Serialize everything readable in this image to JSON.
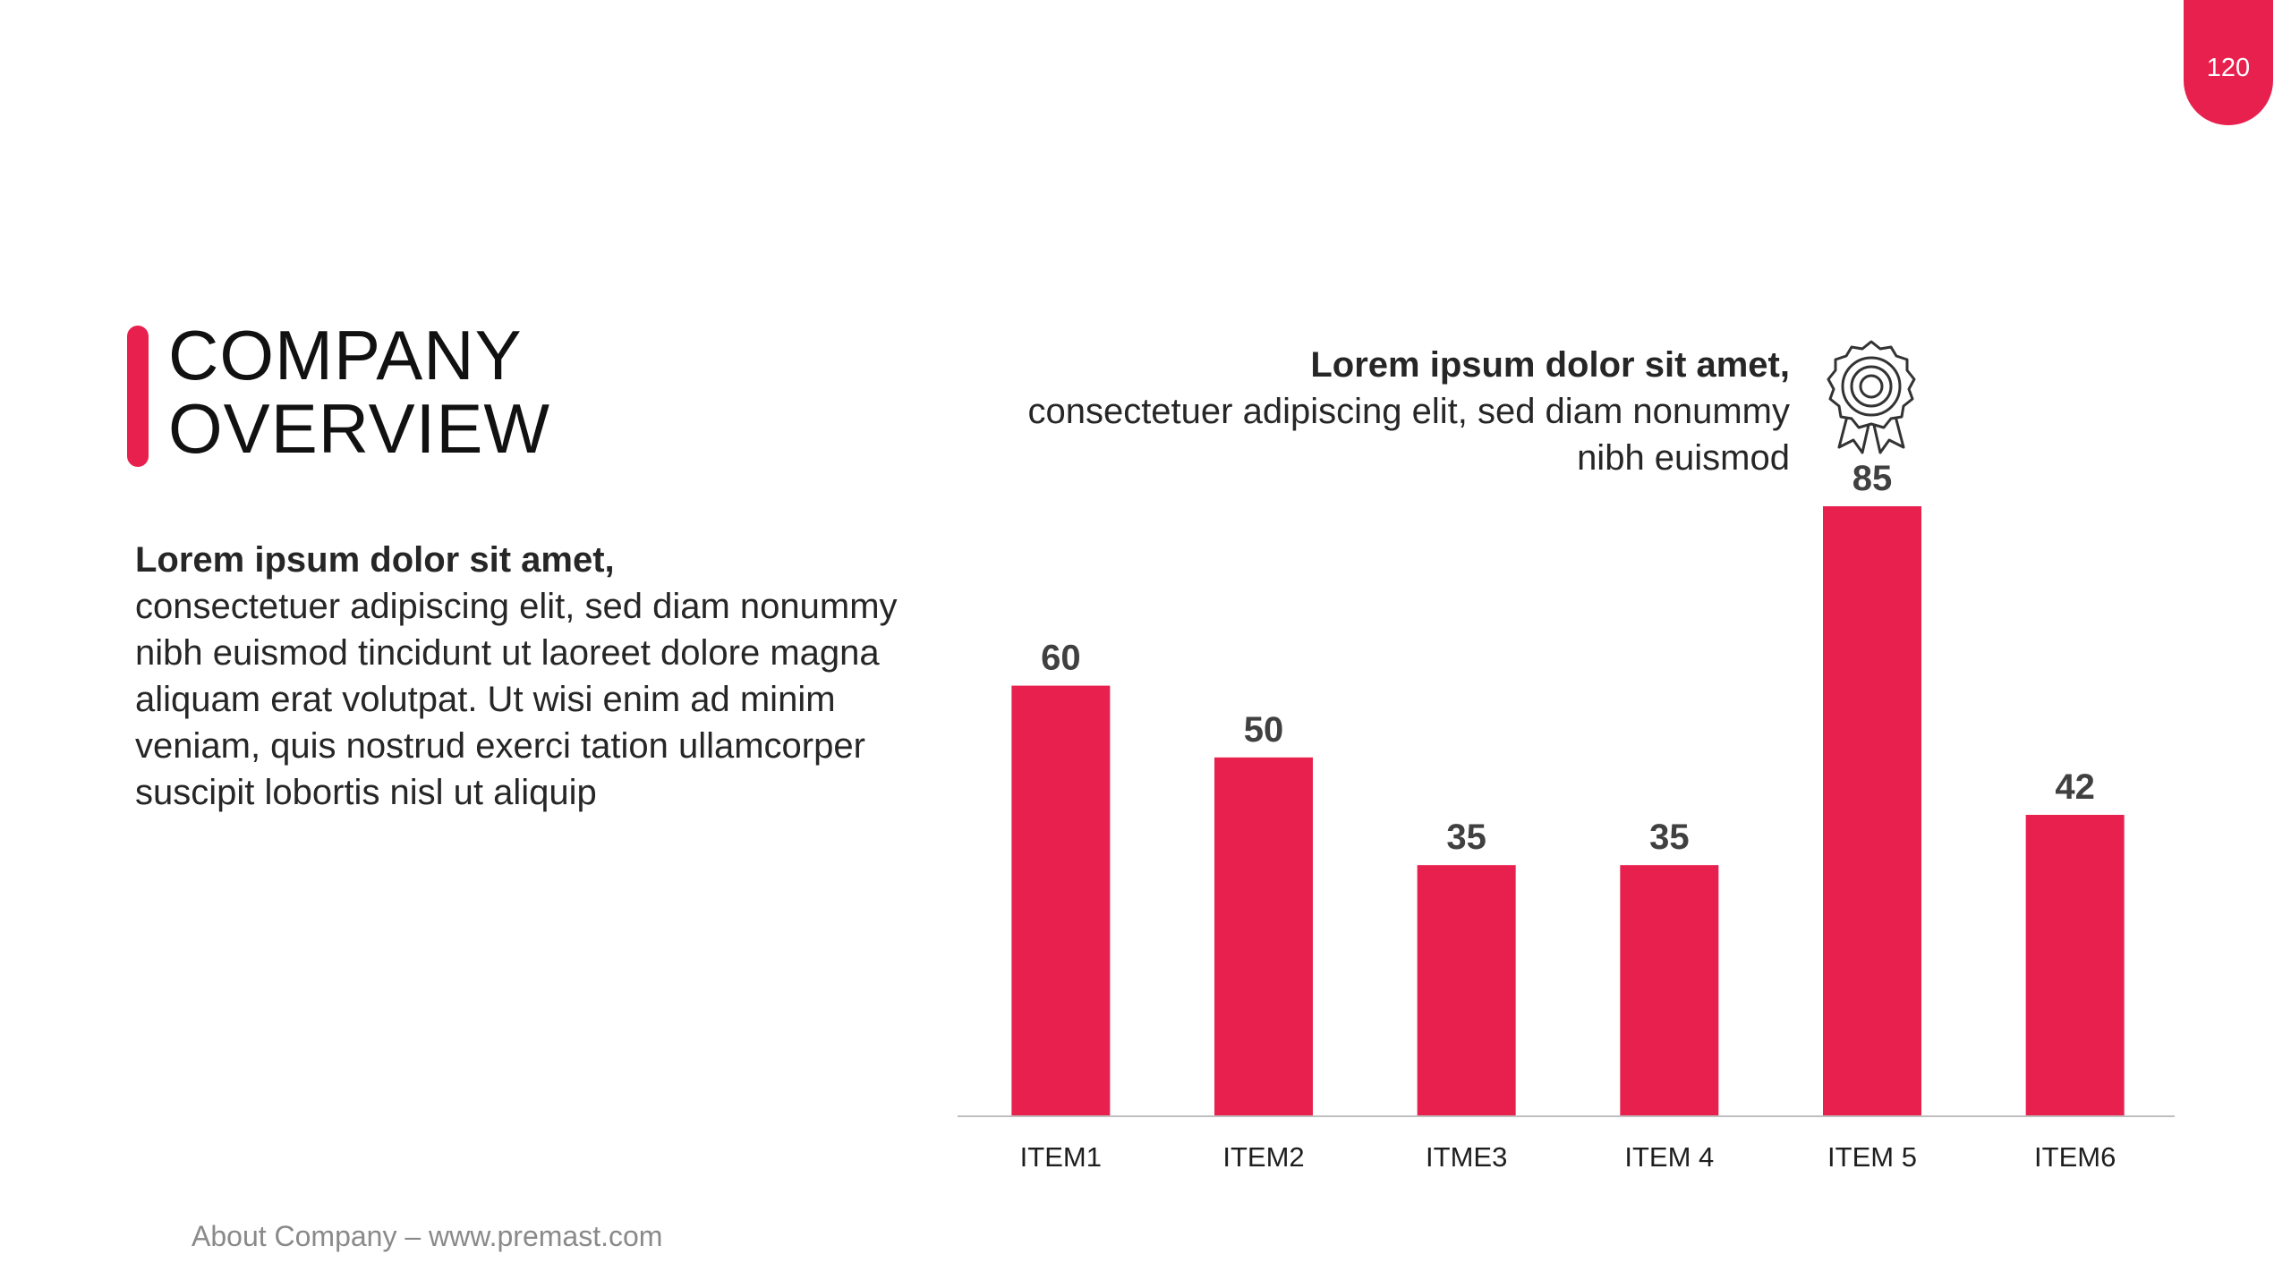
{
  "page_number": "120",
  "title_lines": [
    "COMPANY",
    "OVERVIEW"
  ],
  "body": {
    "heading": "Lorem ipsum dolor sit amet,",
    "text": "consectetuer adipiscing elit, sed diam nonummy nibh euismod tincidunt ut laoreet dolore magna aliquam erat volutpat. Ut wisi enim ad minim veniam, quis nostrud exerci tation ullamcorper suscipit lobortis nisl ut aliquip"
  },
  "callout": {
    "heading": "Lorem ipsum dolor sit amet,",
    "text": "consectetuer adipiscing elit, sed diam nonummy nibh euismod",
    "icon": "award-ribbon-icon"
  },
  "footer": "About Company – www.premast.com",
  "colors": {
    "accent": "#e8204e",
    "value_label": "#404040",
    "axis": "#bfbfbf"
  },
  "chart_data": {
    "type": "bar",
    "categories": [
      "ITEM1",
      "ITEM2",
      "ITME3",
      "ITEM 4",
      "ITEM 5",
      "ITEM6"
    ],
    "values": [
      60,
      50,
      35,
      35,
      85,
      42
    ],
    "ylim": [
      0,
      85
    ],
    "title": "",
    "xlabel": "",
    "ylabel": "",
    "data_labels": true,
    "grid": false
  }
}
